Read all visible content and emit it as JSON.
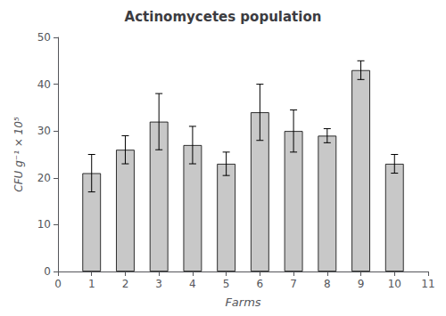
{
  "chart_data": {
    "type": "bar",
    "title": "Actinomycetes population",
    "xlabel": "Farms",
    "ylabel": "CFU g⁻¹ × 10⁵",
    "x": [
      1,
      2,
      3,
      4,
      5,
      6,
      7,
      8,
      9,
      10
    ],
    "values": [
      21,
      26,
      32,
      27,
      23,
      34,
      30,
      29,
      43,
      23
    ],
    "errors": [
      4,
      3,
      6,
      4,
      2.5,
      6,
      4.5,
      1.5,
      2,
      2
    ],
    "color": "#c8c8c8",
    "xlim": [
      0,
      11
    ],
    "xticks": [
      0,
      1,
      2,
      3,
      4,
      5,
      6,
      7,
      8,
      9,
      10,
      11
    ],
    "ylim": [
      0,
      50
    ],
    "yticks": [
      0,
      10,
      20,
      30,
      40,
      50
    ],
    "grid": false
  }
}
